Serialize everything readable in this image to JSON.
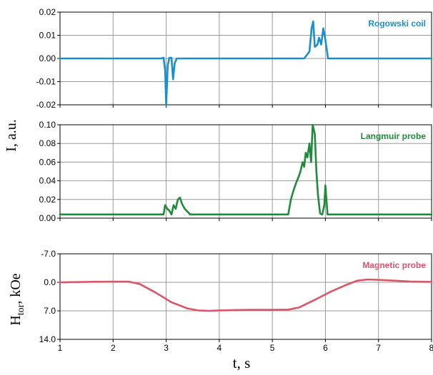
{
  "chart_data": [
    {
      "type": "line",
      "series": [
        {
          "name": "Rogowski coil",
          "color": "#1a8fd0",
          "x": [
            1,
            2.9,
            2.95,
            2.98,
            3.0,
            3.03,
            3.06,
            3.1,
            3.13,
            3.16,
            3.2,
            5.6,
            5.7,
            5.74,
            5.77,
            5.8,
            5.85,
            5.88,
            5.92,
            5.96,
            6.0,
            6.05,
            8
          ],
          "y": [
            0,
            0,
            0.0003,
            -0.005,
            -0.02,
            -0.003,
            0.0003,
            0.0003,
            -0.009,
            -0.002,
            0,
            0,
            0.003,
            0.013,
            0.016,
            0.005,
            0.006,
            0.009,
            0.006,
            0.013,
            0.008,
            0,
            0
          ]
        }
      ],
      "ylim": [
        -0.02,
        0.02
      ],
      "yticks": [
        "0.02",
        "0.01",
        "0.00",
        "-0.01",
        "-0.02"
      ],
      "ytick_values": [
        0.02,
        0.01,
        0.0,
        -0.01,
        -0.02
      ]
    },
    {
      "type": "line",
      "series": [
        {
          "name": "Langmuir probe",
          "color": "#1f8a3a",
          "x": [
            1,
            2.95,
            2.98,
            3.02,
            3.06,
            3.1,
            3.14,
            3.18,
            3.22,
            3.26,
            3.3,
            3.35,
            3.45,
            3.5,
            5.3,
            5.35,
            5.4,
            5.45,
            5.5,
            5.53,
            5.57,
            5.6,
            5.63,
            5.66,
            5.7,
            5.73,
            5.76,
            5.8,
            5.83,
            5.86,
            5.9,
            5.94,
            5.98,
            6.0,
            6.04,
            8
          ],
          "y": [
            0.004,
            0.004,
            0.014,
            0.01,
            0.008,
            0.004,
            0.014,
            0.01,
            0.02,
            0.022,
            0.015,
            0.01,
            0.004,
            0.004,
            0.004,
            0.02,
            0.03,
            0.038,
            0.045,
            0.05,
            0.06,
            0.055,
            0.07,
            0.065,
            0.08,
            0.06,
            0.1,
            0.09,
            0.05,
            0.025,
            0.005,
            0.004,
            0.014,
            0.035,
            0.004,
            0.004
          ]
        }
      ],
      "ylim": [
        0,
        0.1
      ],
      "yticks": [
        "0.10",
        "0.08",
        "0.06",
        "0.04",
        "0.02",
        "0.00"
      ],
      "ytick_values": [
        0.1,
        0.08,
        0.06,
        0.04,
        0.02,
        0.0
      ]
    },
    {
      "type": "line",
      "series": [
        {
          "name": "Magnetic probe",
          "color": "#d9566a",
          "x": [
            1,
            1.5,
            2.0,
            2.3,
            2.5,
            2.8,
            3.1,
            3.4,
            3.6,
            3.8,
            4.0,
            4.3,
            4.6,
            5.0,
            5.3,
            5.5,
            5.8,
            6.1,
            6.4,
            6.6,
            6.8,
            7.0,
            7.3,
            7.6,
            8.0
          ],
          "y": [
            0,
            -0.1,
            -0.15,
            -0.15,
            0.4,
            2.5,
            4.9,
            6.4,
            6.9,
            7.0,
            6.9,
            6.8,
            6.75,
            6.75,
            6.7,
            6.2,
            4.3,
            2.3,
            0.6,
            -0.4,
            -0.7,
            -0.6,
            -0.4,
            -0.2,
            -0.1
          ]
        }
      ],
      "ylim": [
        14.0,
        -7.0
      ],
      "yticks": [
        "-7.0",
        "0.0",
        "7.0",
        "14.0"
      ],
      "ytick_values": [
        -7.0,
        0.0,
        7.0,
        14.0
      ]
    }
  ],
  "xaxis": {
    "xlim": [
      1,
      8
    ],
    "ticks": [
      "1",
      "2",
      "3",
      "4",
      "5",
      "6",
      "7",
      "8"
    ],
    "tick_values": [
      1,
      2,
      3,
      4,
      5,
      6,
      7,
      8
    ],
    "label": "t, s"
  },
  "ylabel_top": "I, a.u.",
  "ylabel_bottom": {
    "main": "H",
    "sub": "tor",
    "rest": ", kOe"
  },
  "grid": true
}
